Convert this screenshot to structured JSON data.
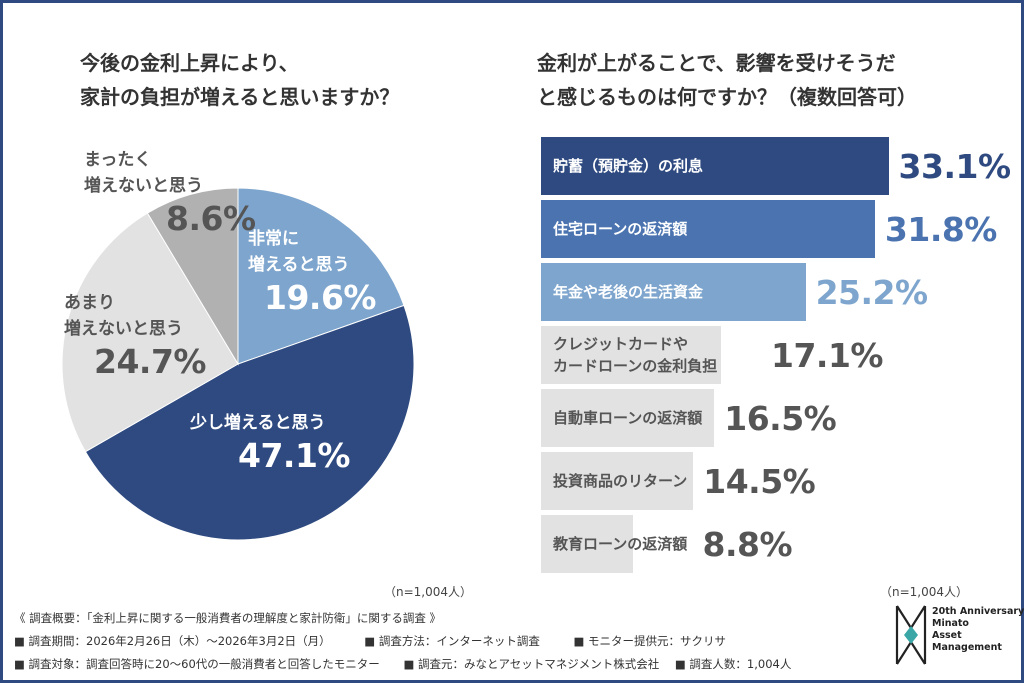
{
  "colors": {
    "frame": "#2e4a80",
    "dark_blue": "#2e4a80",
    "mid_blue": "#4a73b0",
    "light_blue": "#7ea5cd",
    "gray": "#b1b1b1",
    "light_gray": "#e2e2e2",
    "text_gray": "#555555"
  },
  "left_title": [
    "今後の金利上昇により、",
    "家計の負担が増えると思いますか？"
  ],
  "right_title": [
    "金利が上がることで、影響を受けそうだ",
    "と感じるものは何ですか？（複数回答可）"
  ],
  "chart_data": [
    {
      "type": "pie",
      "title": "今後の金利上昇により、家計の負担が増えると思いますか？",
      "slices": [
        {
          "label": "非常に増えると思う",
          "value": 19.6,
          "display": "19.6%",
          "color": "#7ea5cd",
          "text_color": "#ffffff"
        },
        {
          "label": "少し増えると思う",
          "value": 47.1,
          "display": "47.1%",
          "color": "#2e4a80",
          "text_color": "#ffffff"
        },
        {
          "label": "あまり増えないと思う",
          "value": 24.7,
          "display": "24.7%",
          "color": "#e2e2e2",
          "text_color": "#555555"
        },
        {
          "label": "まったく増えないと思う",
          "value": 8.6,
          "display": "8.6%",
          "color": "#b1b1b1",
          "text_color": "#555555"
        }
      ]
    },
    {
      "type": "bar",
      "orientation": "horizontal",
      "title": "金利が上がることで、影響を受けそうだと感じるものは何ですか？（複数回答可）",
      "categories": [
        "貯蓄（預貯金）の利息",
        "住宅ローンの返済額",
        "年金や老後の生活資金",
        "クレジットカードやカードローンの金利負担",
        "自動車ローンの返済額",
        "投資商品のリターン",
        "教育ローンの返済額"
      ],
      "values": [
        33.1,
        31.8,
        25.2,
        17.1,
        16.5,
        14.5,
        8.8
      ],
      "unit": "%"
    }
  ],
  "pie_labels": {
    "s0": {
      "line1": "非常に",
      "line2": "増えると思う",
      "pct": "19.6%"
    },
    "s1": {
      "line1": "少し増えると思う",
      "pct": "47.1%"
    },
    "s2": {
      "line1": "あまり",
      "line2": "増えないと思う",
      "pct": "24.7%"
    },
    "s3": {
      "line1": "まったく",
      "line2": "増えないと思う",
      "pct": "8.6%"
    }
  },
  "bars": [
    {
      "label": [
        "貯蓄（預貯金）の利息"
      ],
      "value": 33.1,
      "display": "33.1%",
      "fill": "#2e4a80",
      "text_color": "#ffffff",
      "value_color": "#2e4a80"
    },
    {
      "label": [
        "住宅ローンの返済額"
      ],
      "value": 31.8,
      "display": "31.8%",
      "fill": "#4a73b0",
      "text_color": "#ffffff",
      "value_color": "#4a73b0"
    },
    {
      "label": [
        "年金や老後の生活資金"
      ],
      "value": 25.2,
      "display": "25.2%",
      "fill": "#7ea5cd",
      "text_color": "#ffffff",
      "value_color": "#7ea5cd"
    },
    {
      "label": [
        "クレジットカードや",
        "カードローンの金利負担"
      ],
      "value": 17.1,
      "display": "17.1%",
      "fill": "#e2e2e2",
      "text_color": "#555555",
      "value_color": "#555555"
    },
    {
      "label": [
        "自動車ローンの返済額"
      ],
      "value": 16.5,
      "display": "16.5%",
      "fill": "#e2e2e2",
      "text_color": "#555555",
      "value_color": "#555555"
    },
    {
      "label": [
        "投資商品のリターン"
      ],
      "value": 14.5,
      "display": "14.5%",
      "fill": "#e2e2e2",
      "text_color": "#555555",
      "value_color": "#555555"
    },
    {
      "label": [
        "教育ローンの返済額"
      ],
      "value": 8.8,
      "display": "8.8%",
      "fill": "#e2e2e2",
      "text_color": "#555555",
      "value_color": "#555555"
    }
  ],
  "n_left": "（n=1,004人）",
  "n_right": "（n=1,004人）",
  "footer": {
    "line1": "《 調査概要：「金利上昇に関する一般消費者の理解度と家計防衛」に関する調査 》",
    "line2": [
      "■ 調査期間：2026年2月26日（木）〜2026年3月2日（月）",
      "■ 調査方法：インターネット調査",
      "■ モニター提供元：サクリサ"
    ],
    "line3": [
      "■ 調査対象：調査回答時に20〜60代の一般消費者と回答したモニター",
      "■ 調査元：みなとアセットマネジメント株式会社",
      "■ 調査人数：1,004人"
    ]
  },
  "logo": {
    "lines": [
      "20th Anniversary",
      "Minato",
      "Asset",
      "Management"
    ],
    "icon": "minato-monogram-icon"
  }
}
